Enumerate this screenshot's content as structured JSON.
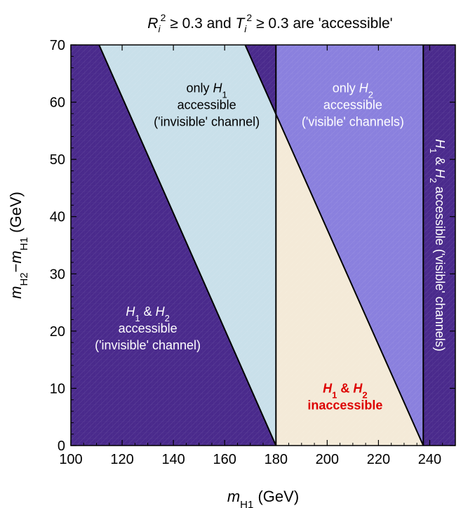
{
  "chart_data": {
    "type": "area",
    "title": {
      "parts": [
        {
          "text": "R",
          "style": "italic"
        },
        {
          "text": "i",
          "style": "italic-sub"
        },
        {
          "text": "2",
          "style": "sup"
        },
        {
          "text": " ≥ 0.3  and  ",
          "style": "normal"
        },
        {
          "text": "T",
          "style": "italic"
        },
        {
          "text": "i",
          "style": "italic-sub"
        },
        {
          "text": "2",
          "style": "sup"
        },
        {
          "text": " ≥ 0.3  are 'accessible'",
          "style": "normal"
        }
      ]
    },
    "xlabel": {
      "main": "m",
      "sub": "H1",
      "unit": " (GeV)"
    },
    "ylabel": {
      "main": "m",
      "sub1": "H2",
      "minus": "−",
      "main2": "m",
      "sub2": "H1",
      "unit": " (GeV)"
    },
    "xlim": [
      100,
      250
    ],
    "ylim": [
      0,
      70
    ],
    "xticks": [
      100,
      120,
      140,
      160,
      180,
      200,
      220,
      240
    ],
    "yticks": [
      0,
      10,
      20,
      30,
      40,
      50,
      60,
      70
    ],
    "colors": {
      "dark": "#4a2a8c",
      "light_blue": "#c9e0ea",
      "lavender": "#8a80de",
      "beige": "#f4ead8",
      "boundary": "#000000",
      "red": "#dd0000",
      "white": "#ffffff"
    },
    "regions": [
      {
        "name": "H1-H2-accessible-invisible",
        "color": "dark",
        "polygon": [
          [
            100,
            0
          ],
          [
            180,
            0
          ],
          [
            111,
            70
          ],
          [
            100,
            70
          ]
        ]
      },
      {
        "name": "only-H1-accessible",
        "color": "light_blue",
        "polygon": [
          [
            180,
            0
          ],
          [
            180,
            58
          ],
          [
            168,
            70
          ],
          [
            111,
            70
          ]
        ]
      },
      {
        "name": "dark-sliver",
        "color": "dark",
        "polygon": [
          [
            180,
            58
          ],
          [
            180,
            70
          ],
          [
            168,
            70
          ]
        ]
      },
      {
        "name": "H1-H2-inaccessible",
        "color": "beige",
        "polygon": [
          [
            180,
            0
          ],
          [
            237.5,
            0
          ],
          [
            180,
            58
          ]
        ]
      },
      {
        "name": "only-H2-accessible",
        "color": "lavender",
        "polygon": [
          [
            180,
            58
          ],
          [
            237.5,
            0
          ],
          [
            237.5,
            70
          ],
          [
            180,
            70
          ]
        ]
      },
      {
        "name": "H1-H2-accessible-visible",
        "color": "dark",
        "polygon": [
          [
            237.5,
            0
          ],
          [
            250,
            0
          ],
          [
            250,
            70
          ],
          [
            237.5,
            70
          ]
        ]
      }
    ],
    "boundaries": [
      {
        "name": "boundary-invisible",
        "points": [
          [
            111,
            70
          ],
          [
            180,
            0
          ]
        ]
      },
      {
        "name": "boundary-visible",
        "points": [
          [
            168,
            70
          ],
          [
            237.5,
            0
          ]
        ]
      },
      {
        "name": "boundary-vertical-180",
        "points": [
          [
            180,
            0
          ],
          [
            180,
            70
          ]
        ]
      },
      {
        "name": "boundary-vertical-237",
        "points": [
          [
            237.5,
            0
          ],
          [
            237.5,
            70
          ]
        ]
      }
    ],
    "annotations": [
      {
        "name": "label-only-h1",
        "x": 153,
        "y": 59.5,
        "color": "#000000",
        "lines": [
          [
            {
              "t": "only "
            },
            {
              "t": "H",
              "i": true
            },
            {
              "t": "1",
              "sub": true
            }
          ],
          [
            {
              "t": "accessible"
            }
          ],
          [
            {
              "t": "('invisible' channel)"
            }
          ]
        ]
      },
      {
        "name": "label-only-h2",
        "x": 210,
        "y": 59.5,
        "color": "#ffffff",
        "lines": [
          [
            {
              "t": "only "
            },
            {
              "t": "H",
              "i": true
            },
            {
              "t": "2",
              "sub": true
            }
          ],
          [
            {
              "t": "accessible"
            }
          ],
          [
            {
              "t": "('visible' channels)"
            }
          ]
        ]
      },
      {
        "name": "label-h1-h2-invisible",
        "x": 130,
        "y": 20.5,
        "color": "#ffffff",
        "lines": [
          [
            {
              "t": "H",
              "i": true
            },
            {
              "t": "1",
              "sub": true
            },
            {
              "t": " & "
            },
            {
              "t": "H",
              "i": true
            },
            {
              "t": "2",
              "sub": true
            }
          ],
          [
            {
              "t": "accessible"
            }
          ],
          [
            {
              "t": "('invisible' channel)"
            }
          ]
        ]
      },
      {
        "name": "label-h1-h2-inaccessible",
        "x": 207,
        "y": 8.5,
        "color": "#dd0000",
        "bold": true,
        "lines": [
          [
            {
              "t": "H",
              "i": true
            },
            {
              "t": "1",
              "sub": true
            },
            {
              "t": " & "
            },
            {
              "t": "H",
              "i": true
            },
            {
              "t": "2",
              "sub": true
            }
          ],
          [
            {
              "t": "inaccessible"
            }
          ]
        ]
      },
      {
        "name": "label-h1-h2-visible",
        "x": 244,
        "y": 35,
        "color": "#ffffff",
        "rotate": 90,
        "lines": [
          [
            {
              "t": "H",
              "i": true
            },
            {
              "t": "1",
              "sub": true
            },
            {
              "t": " & "
            },
            {
              "t": "H",
              "i": true
            },
            {
              "t": "2",
              "sub": true
            },
            {
              "t": " accessible ('visible' channels)"
            }
          ]
        ]
      }
    ]
  }
}
